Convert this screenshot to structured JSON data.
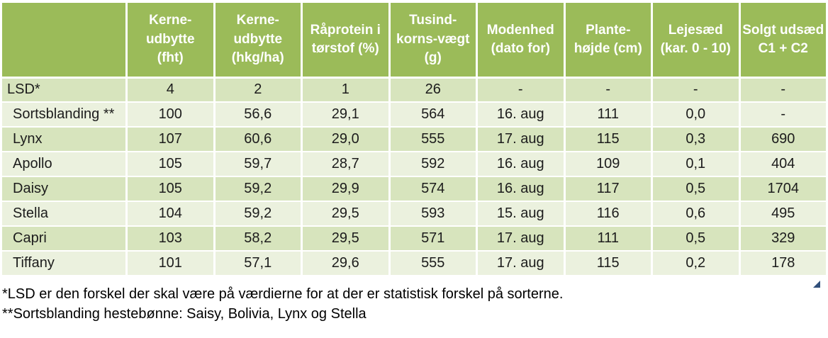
{
  "table": {
    "columns": [
      "",
      "Kerne-\nudbytte\n(fht)",
      "Kerne-\nudbytte\n(hkg/ha)",
      "Råprotein i\ntørstof (%)",
      "Tusind-\nkorns-vægt\n(g)",
      "Modenhed\n(dato for)",
      "Plante-\nhøjde (cm)",
      "Lejesæd\n(kar. 0 - 10)",
      "Solgt udsæd\nC1 + C2"
    ],
    "rows": [
      {
        "name": "LSD*",
        "values": [
          "4",
          "2",
          "1",
          "26",
          "-",
          "-",
          "-",
          "-"
        ]
      },
      {
        "name": "Sortsblanding **",
        "values": [
          "100",
          "56,6",
          "29,1",
          "564",
          "16. aug",
          "111",
          "0,0",
          "-"
        ]
      },
      {
        "name": "Lynx",
        "values": [
          "107",
          "60,6",
          "29,0",
          "555",
          "17. aug",
          "115",
          "0,3",
          "690"
        ]
      },
      {
        "name": "Apollo",
        "values": [
          "105",
          "59,7",
          "28,7",
          "592",
          "16. aug",
          "109",
          "0,1",
          "404"
        ]
      },
      {
        "name": "Daisy",
        "values": [
          "105",
          "59,2",
          "29,9",
          "574",
          "16. aug",
          "117",
          "0,5",
          "1704"
        ]
      },
      {
        "name": "Stella",
        "values": [
          "104",
          "59,2",
          "29,5",
          "593",
          "15. aug",
          "116",
          "0,6",
          "495"
        ]
      },
      {
        "name": "Capri",
        "values": [
          "103",
          "58,2",
          "29,5",
          "571",
          "17. aug",
          "111",
          "0,5",
          "329"
        ]
      },
      {
        "name": "Tiffany",
        "values": [
          "101",
          "57,1",
          "29,6",
          "555",
          "17. aug",
          "115",
          "0,2",
          "178"
        ]
      }
    ]
  },
  "footnotes": [
    "*LSD er den forskel der skal være på værdierne for at der er statistisk forskel på sorterne.",
    "**Sortsblanding hestebønne: Saisy, Bolivia, Lynx og Stella"
  ],
  "icons": {
    "resize_handle": "corner-triangle"
  },
  "colors": {
    "header_bg": "#9BBB59",
    "row_dark": "#D7E4BD",
    "row_light": "#EBF1DE",
    "header_text": "#FFFFFF",
    "body_text": "#1C1C1C",
    "grid": "#FFFFFF",
    "handle": "#31507B"
  }
}
